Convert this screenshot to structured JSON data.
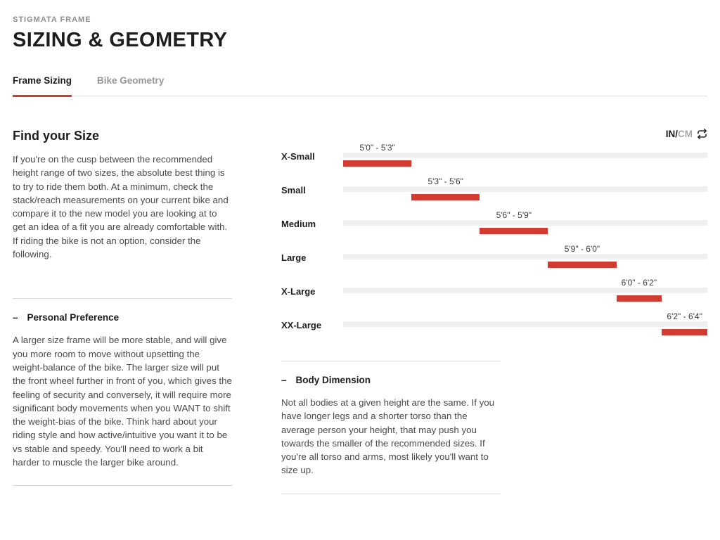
{
  "dash": "–",
  "theme": {
    "accent": "#d43a2f"
  },
  "header": {
    "eyebrow": "STIGMATA FRAME",
    "title": "SIZING & GEOMETRY"
  },
  "tabs": [
    {
      "label": "Frame Sizing",
      "active": true
    },
    {
      "label": "Bike Geometry",
      "active": false
    }
  ],
  "left": {
    "heading": "Find your Size",
    "intro": "If you're on the cusp between the recommended height range of two sizes, the absolute best thing is to try to ride them both. At a minimum, check the stack/reach measurements on your current bike and compare it to the new model you are looking at to get an idea of a fit you are already comfortable with. If riding the bike is not an option, consider the following.",
    "sections": [
      {
        "title": "Personal Preference",
        "body": "A larger size frame will be more stable, and will give you more room to move without upsetting the weight-balance of the bike. The larger size will put the front wheel further in front of you, which gives the feeling of security and conversely, it will require more significant body movements when you WANT to shift the weight-bias of the bike. Think hard about your riding style and how active/intuitive you want it to be vs stable and speedy. You'll need to work a bit harder to muscle the larger bike around."
      }
    ]
  },
  "unit_toggle": {
    "primary": "IN",
    "separator": "/",
    "secondary": "CM",
    "icon": "swap-units-icon"
  },
  "chart_data": {
    "type": "bar",
    "title": "Rider height ranges by frame size",
    "unit": "inches",
    "domain": [
      60,
      76
    ],
    "categories": [
      "X-Small",
      "Small",
      "Medium",
      "Large",
      "X-Large",
      "XX-Large"
    ],
    "ranges_in": [
      [
        60,
        63
      ],
      [
        63,
        66
      ],
      [
        66,
        69
      ],
      [
        69,
        72
      ],
      [
        72,
        74
      ],
      [
        74,
        76
      ]
    ],
    "range_labels": [
      "5'0\" - 5'3\"",
      "5'3\" - 5'6\"",
      "5'6\" - 5'9\"",
      "5'9\" - 6'0\"",
      "6'0\" - 6'2\"",
      "6'2\" - 6'4\""
    ],
    "bar_color": "#d23b31",
    "track_color": "#f0f0f0",
    "legend": "none",
    "grid": false
  },
  "body_dimension": {
    "title": "Body Dimension",
    "body": "Not all bodies at a given height are the same. If you have longer legs and a shorter torso than the average person your height, that may push you towards the smaller of the recommended sizes. If you're all torso and arms, most likely you'll want to size up."
  }
}
